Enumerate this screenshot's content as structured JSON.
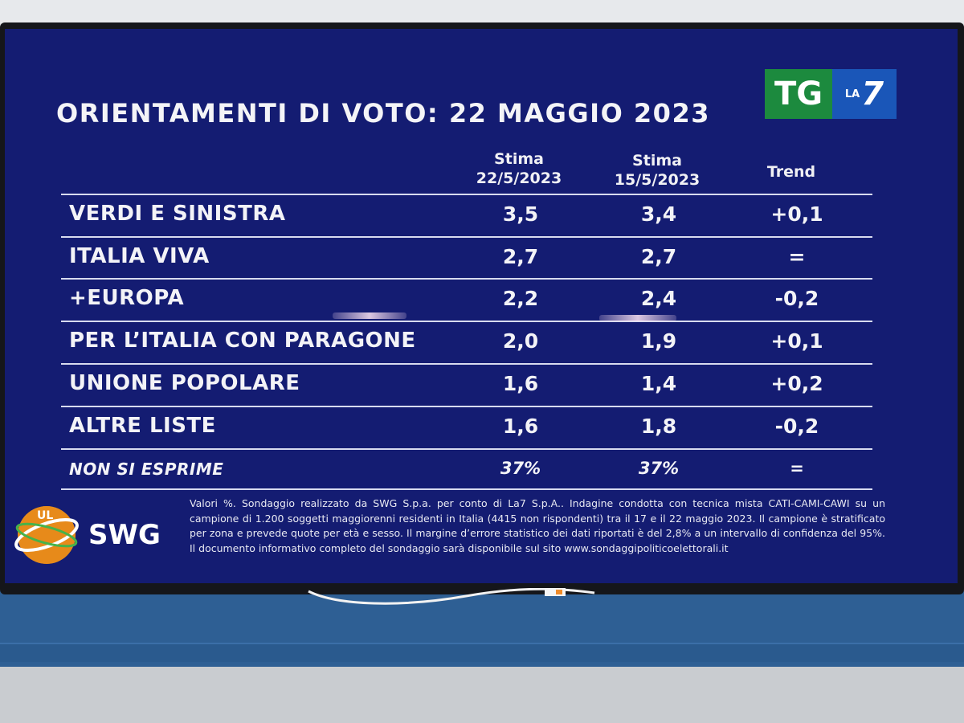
{
  "title": "ORIENTAMENTI DI VOTO: 22 MAGGIO 2023",
  "logo": {
    "tg": "TG",
    "la": "LA",
    "seven": "7"
  },
  "columns": {
    "col1": [
      "Stima",
      "22/5/2023"
    ],
    "col2": [
      "Stima",
      "15/5/2023"
    ],
    "col3": "Trend"
  },
  "chart_data": {
    "type": "table",
    "title": "ORIENTAMENTI DI VOTO: 22 MAGGIO 2023",
    "headers": [
      "Stima 22/5/2023",
      "Stima 15/5/2023",
      "Trend"
    ],
    "rows": [
      {
        "label": "VERDI E SINISTRA",
        "cur": "3,5",
        "prev": "3,4",
        "trend": "+0,1"
      },
      {
        "label": "ITALIA VIVA",
        "cur": "2,7",
        "prev": "2,7",
        "trend": "="
      },
      {
        "label": "+EUROPA",
        "cur": "2,2",
        "prev": "2,4",
        "trend": "-0,2"
      },
      {
        "label": "PER L’ITALIA CON PARAGONE",
        "cur": "2,0",
        "prev": "1,9",
        "trend": "+0,1"
      },
      {
        "label": "UNIONE POPOLARE",
        "cur": "1,6",
        "prev": "1,4",
        "trend": "+0,2"
      },
      {
        "label": "ALTRE LISTE",
        "cur": "1,6",
        "prev": "1,8",
        "trend": "-0,2"
      },
      {
        "label": "NON SI ESPRIME",
        "cur": "37%",
        "prev": "37%",
        "trend": "="
      }
    ]
  },
  "swg": {
    "name": "SWG",
    "badge": "UL"
  },
  "footnote": "Valori %. Sondaggio realizzato da SWG S.p.a. per conto di La7 S.p.A.. Indagine condotta con tecnica mista CATI-CAMI-CAWI su un campione di 1.200 soggetti maggiorenni residenti in Italia (4415 non rispondenti) tra il 17 e il 22 maggio 2023. Il campione è stratificato per zona e prevede quote per età e sesso. Il margine d’errore statistico dei dati riportati è del 2,8% a un intervallo di confidenza del 95%. Il documento informativo completo del sondaggio sarà disponibile sul sito www.sondaggipoliticoelettorali.it",
  "colors": {
    "screen": "#141c72",
    "tg_green": "#1c8a3e",
    "la7_blue": "#1a56b8",
    "text": "#f3f3f7"
  }
}
